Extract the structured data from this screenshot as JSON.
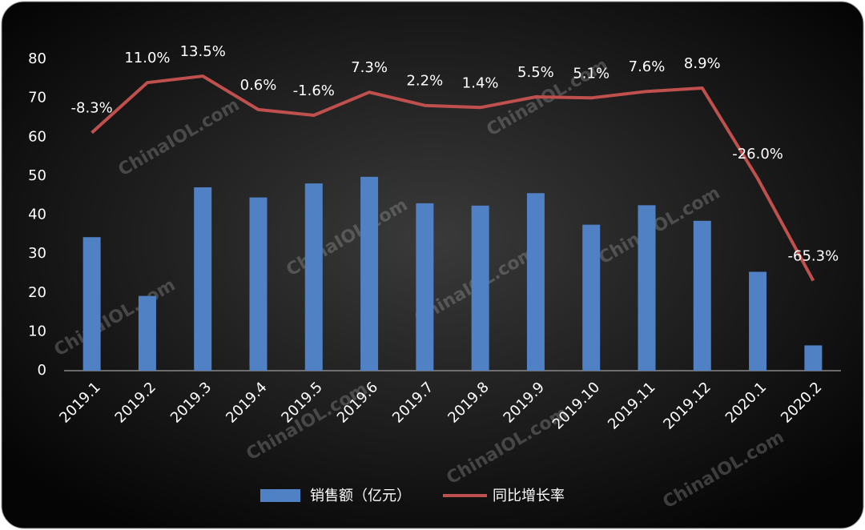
{
  "chart_data": {
    "type": "bar_line",
    "categories": [
      "2019.1",
      "2019.2",
      "2019.3",
      "2019.4",
      "2019.5",
      "2019.6",
      "2019.7",
      "2019.8",
      "2019.9",
      "2019.10",
      "2019.11",
      "2019.12",
      "2020.1",
      "2020.2"
    ],
    "series": [
      {
        "name": "销售额（亿元）",
        "type": "bar",
        "color": "#4f81c4",
        "values": [
          34.3,
          19.2,
          47.1,
          44.5,
          48.1,
          49.8,
          43.0,
          42.4,
          45.6,
          37.5,
          42.5,
          38.5,
          25.4,
          6.5
        ]
      },
      {
        "name": "同比增长率",
        "type": "line",
        "axis": "y2",
        "color": "#c0504d",
        "values": [
          -8.3,
          11.0,
          13.5,
          0.6,
          -1.6,
          7.3,
          2.2,
          1.4,
          5.5,
          5.1,
          7.6,
          8.9,
          -26.0,
          -65.3
        ],
        "value_labels": [
          "-8.3%",
          "11.0%",
          "13.5%",
          "0.6%",
          "-1.6%",
          "7.3%",
          "2.2%",
          "1.4%",
          "5.5%",
          "5.1%",
          "7.6%",
          "8.9%",
          "-26.0%",
          "-65.3%"
        ]
      }
    ],
    "ylim": [
      0,
      80
    ],
    "yticks": [
      0,
      10,
      20,
      30,
      40,
      50,
      60,
      70,
      80
    ],
    "y2lim": [
      -100,
      20
    ],
    "grid": false,
    "legend": "bottom",
    "watermark": "ChinaIOL.com"
  }
}
